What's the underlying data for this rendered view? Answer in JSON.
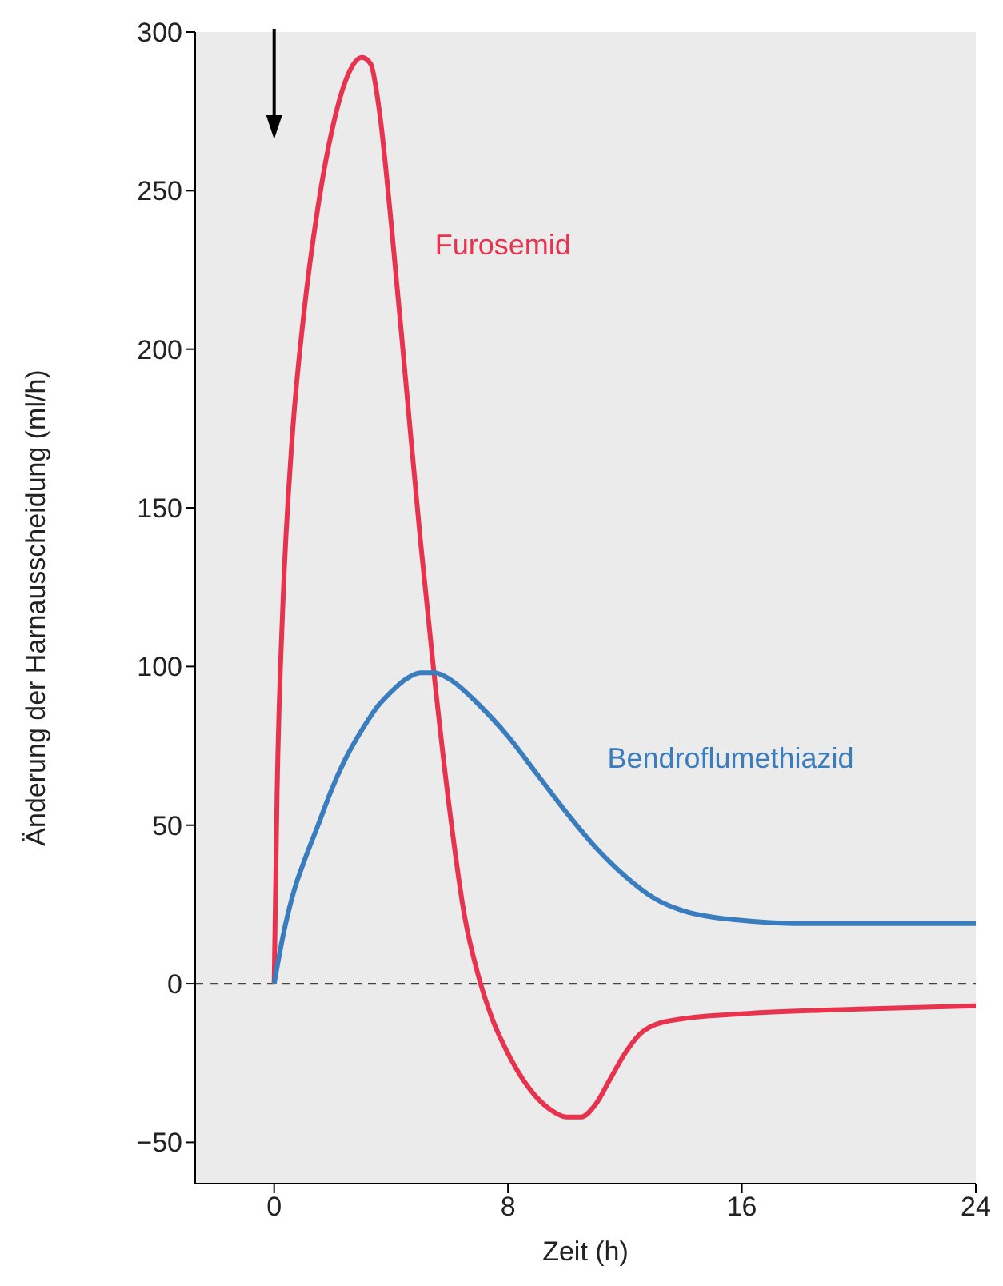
{
  "chart_data": {
    "type": "line",
    "xlabel": "Zeit (h)",
    "ylabel": "Änderung der Harnausscheidung (ml/h)",
    "xlim": [
      -2.7,
      24
    ],
    "xticks": [
      0,
      8,
      16,
      24
    ],
    "ylim": [
      -63,
      300
    ],
    "yticks": [
      {
        "value": -50,
        "label": "−50"
      },
      0,
      50,
      100,
      150,
      200,
      250,
      300
    ],
    "grid": false,
    "legend": false,
    "marker": "none",
    "line_style": "solid",
    "ref_lines": [
      {
        "axis": "y",
        "value": 0,
        "color": "#444444",
        "line_style": "dashed"
      }
    ],
    "series": [
      {
        "name": "Furosemid",
        "color": "#e8334f",
        "x": [
          0,
          0.1,
          0.3,
          0.6,
          1,
          1.5,
          2,
          2.5,
          3,
          3.3,
          3.6,
          4,
          4.5,
          5,
          5.5,
          6,
          6.5,
          7,
          7.5,
          8,
          8.5,
          9,
          9.5,
          10,
          10.5,
          11,
          11.5,
          12,
          12.5,
          13,
          14,
          16,
          20,
          24
        ],
        "values": [
          0,
          60,
          120,
          170,
          210,
          245,
          270,
          286,
          292,
          290,
          275,
          240,
          190,
          140,
          95,
          55,
          22,
          2,
          -12,
          -22,
          -30,
          -36,
          -40,
          -42,
          -42,
          -38,
          -30,
          -22,
          -16,
          -13,
          -11,
          -9.5,
          -8,
          -7
        ]
      },
      {
        "name": "Bendroflumethiazid",
        "color": "#3a7dbf",
        "x": [
          0,
          0.3,
          0.7,
          1,
          1.5,
          2,
          2.5,
          3,
          3.5,
          4,
          4.5,
          5,
          5.5,
          6,
          7,
          8,
          9,
          10,
          11,
          12,
          13,
          14,
          15,
          16,
          18,
          24
        ],
        "values": [
          0,
          15,
          30,
          38,
          50,
          62,
          72,
          80,
          87,
          92,
          96,
          98,
          98,
          96,
          88,
          78,
          66,
          54,
          43,
          34,
          27,
          23,
          21,
          20,
          19,
          19
        ]
      }
    ]
  }
}
